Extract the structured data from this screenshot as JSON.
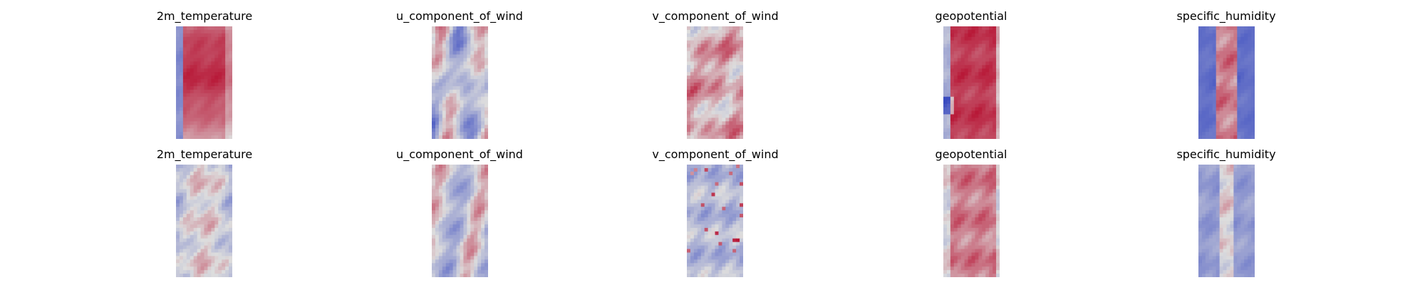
{
  "chart_data": {
    "type": "heatmap",
    "colormap": "coolwarm",
    "colors": {
      "low": "#3b4cc0",
      "mid": "#dddddd",
      "high": "#b40426"
    },
    "axes_visible": false,
    "grid": false,
    "panels": [
      {
        "title": "2m_temperature",
        "row": 1,
        "col": 1,
        "pattern": "warm-band-cold-left"
      },
      {
        "title": "u_component_of_wind",
        "row": 1,
        "col": 2,
        "pattern": "mixed-streaks"
      },
      {
        "title": "v_component_of_wind",
        "row": 1,
        "col": 3,
        "pattern": "mostly-warm-noise"
      },
      {
        "title": "geopotential",
        "row": 1,
        "col": 4,
        "pattern": "warm-band-blue-edges"
      },
      {
        "title": "specific_humidity",
        "row": 1,
        "col": 5,
        "pattern": "narrow-warm-center-cold-edges"
      },
      {
        "title": "2m_temperature",
        "row": 2,
        "col": 1,
        "pattern": "faint-warm-center"
      },
      {
        "title": "u_component_of_wind",
        "row": 2,
        "col": 2,
        "pattern": "mixed-streaks-faint"
      },
      {
        "title": "v_component_of_wind",
        "row": 2,
        "col": 3,
        "pattern": "cool-noise"
      },
      {
        "title": "geopotential",
        "row": 2,
        "col": 4,
        "pattern": "warm-band-soft"
      },
      {
        "title": "specific_humidity",
        "row": 2,
        "col": 5,
        "pattern": "blue-with-faint-center"
      }
    ]
  }
}
